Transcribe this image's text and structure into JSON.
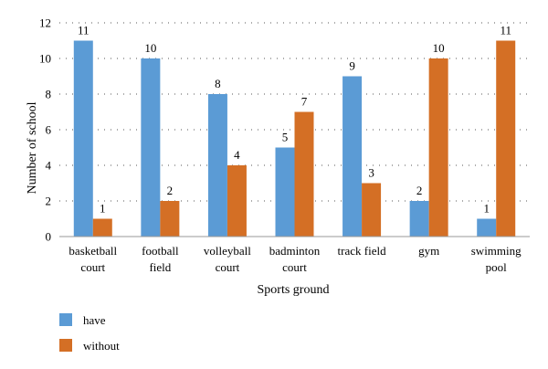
{
  "chart_data": {
    "type": "bar",
    "categories": [
      [
        "basketball",
        "court"
      ],
      [
        "football",
        "field"
      ],
      [
        "volleyball",
        "court"
      ],
      [
        "badminton",
        "court"
      ],
      [
        "track field"
      ],
      [
        "gym"
      ],
      [
        "swimming",
        "pool"
      ]
    ],
    "series": [
      {
        "name": "have",
        "values": [
          11,
          10,
          8,
          5,
          9,
          2,
          1
        ],
        "color": "#5b9bd5"
      },
      {
        "name": "without",
        "values": [
          1,
          2,
          4,
          7,
          3,
          10,
          11
        ],
        "color": "#d46f25"
      }
    ],
    "xlabel": "Sports ground",
    "ylabel": "Number of school",
    "ylim": [
      0,
      12
    ],
    "yticks": [
      0,
      2,
      4,
      6,
      8,
      10,
      12
    ],
    "grid": true,
    "legend_position": "bottom-left",
    "data_labels": true
  }
}
